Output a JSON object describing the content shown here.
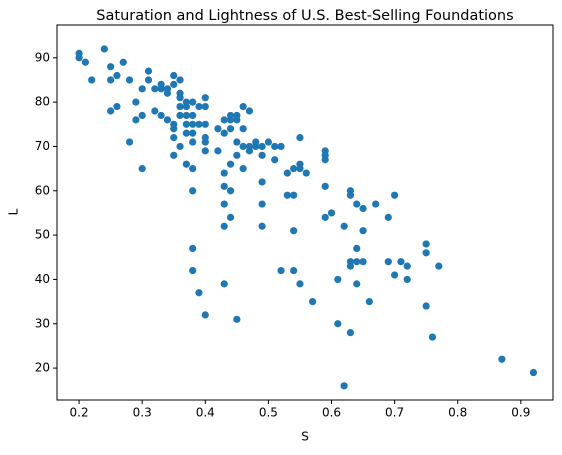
{
  "chart_data": {
    "type": "scatter",
    "title": "Saturation and Lightness of U.S. Best-Selling Foundations",
    "x_label": "S",
    "y_label": "L",
    "color": "#1f77b4",
    "xlim": [
      0.165,
      0.951
    ],
    "ylim": [
      12.8,
      97.4
    ],
    "xticks": [
      0.2,
      0.3,
      0.4,
      0.5,
      0.6,
      0.7,
      0.8,
      0.9
    ],
    "yticks": [
      20,
      30,
      40,
      50,
      60,
      70,
      80,
      90
    ],
    "x": [
      0.2,
      0.2,
      0.21,
      0.22,
      0.24,
      0.25,
      0.25,
      0.25,
      0.26,
      0.26,
      0.27,
      0.28,
      0.28,
      0.29,
      0.29,
      0.3,
      0.3,
      0.3,
      0.31,
      0.31,
      0.32,
      0.32,
      0.33,
      0.33,
      0.33,
      0.34,
      0.34,
      0.34,
      0.35,
      0.35,
      0.35,
      0.35,
      0.35,
      0.35,
      0.36,
      0.36,
      0.36,
      0.36,
      0.36,
      0.36,
      0.37,
      0.37,
      0.37,
      0.37,
      0.37,
      0.37,
      0.38,
      0.38,
      0.38,
      0.38,
      0.38,
      0.38,
      0.38,
      0.38,
      0.38,
      0.39,
      0.39,
      0.39,
      0.4,
      0.4,
      0.4,
      0.4,
      0.4,
      0.4,
      0.4,
      0.42,
      0.42,
      0.43,
      0.43,
      0.43,
      0.43,
      0.43,
      0.43,
      0.43,
      0.44,
      0.44,
      0.44,
      0.44,
      0.44,
      0.44,
      0.45,
      0.45,
      0.45,
      0.45,
      0.45,
      0.46,
      0.46,
      0.46,
      0.46,
      0.47,
      0.47,
      0.47,
      0.48,
      0.48,
      0.49,
      0.49,
      0.49,
      0.49,
      0.49,
      0.5,
      0.51,
      0.51,
      0.52,
      0.52,
      0.53,
      0.53,
      0.54,
      0.54,
      0.54,
      0.54,
      0.55,
      0.55,
      0.55,
      0.55,
      0.56,
      0.57,
      0.59,
      0.59,
      0.59,
      0.59,
      0.59,
      0.6,
      0.61,
      0.61,
      0.62,
      0.62,
      0.63,
      0.63,
      0.63,
      0.63,
      0.63,
      0.64,
      0.64,
      0.64,
      0.64,
      0.65,
      0.65,
      0.65,
      0.66,
      0.67,
      0.69,
      0.69,
      0.7,
      0.7,
      0.71,
      0.72,
      0.72,
      0.75,
      0.75,
      0.75,
      0.76,
      0.77,
      0.87,
      0.92
    ],
    "values": [
      91,
      90,
      89,
      85,
      92,
      88,
      85,
      78,
      86,
      79,
      89,
      85,
      71,
      80,
      76,
      83,
      77,
      65,
      87,
      85,
      83,
      78,
      84,
      83,
      77,
      83,
      82,
      76,
      86,
      84,
      75,
      74,
      72,
      68,
      85,
      82,
      81,
      79,
      77,
      70,
      80,
      79,
      77,
      75,
      73,
      66,
      80,
      77,
      75,
      73,
      71,
      65,
      60,
      47,
      42,
      79,
      75,
      37,
      81,
      79,
      75,
      72,
      71,
      69,
      32,
      74,
      69,
      76,
      73,
      64,
      61,
      57,
      52,
      39,
      77,
      76,
      74,
      66,
      60,
      54,
      77,
      76,
      71,
      68,
      31,
      79,
      74,
      70,
      65,
      78,
      70,
      69,
      71,
      70,
      70,
      68,
      62,
      57,
      52,
      71,
      70,
      67,
      70,
      42,
      64,
      59,
      65,
      59,
      51,
      42,
      72,
      66,
      65,
      39,
      64,
      35,
      69,
      68,
      67,
      61,
      54,
      55,
      40,
      30,
      52,
      16,
      60,
      59,
      44,
      43,
      28,
      57,
      47,
      44,
      39,
      56,
      51,
      44,
      35,
      57,
      54,
      44,
      59,
      41,
      44,
      43,
      40,
      48,
      46,
      34,
      27,
      43,
      22,
      19
    ]
  }
}
